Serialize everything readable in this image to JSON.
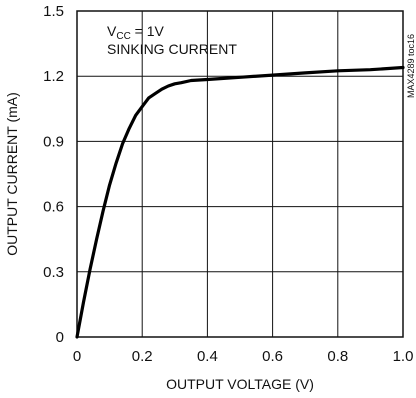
{
  "chart_data": {
    "type": "line",
    "xlabel": "OUTPUT VOLTAGE (V)",
    "ylabel": "OUTPUT CURRENT (mA)",
    "xlim": [
      0,
      1.0
    ],
    "ylim": [
      0,
      1.5
    ],
    "x_ticks": [
      "0",
      "0.2",
      "0.4",
      "0.6",
      "0.8",
      "1.0"
    ],
    "y_ticks": [
      "0",
      "0.3",
      "0.6",
      "0.9",
      "1.2",
      "1.5"
    ],
    "grid": true,
    "annotation": {
      "line1_main": "V",
      "line1_sub": "CC",
      "line1_rest": " = 1V",
      "line2": "SINKING CURRENT"
    },
    "side_note": "MAX4289 toc16",
    "series": [
      {
        "x": [
          0,
          0.02,
          0.04,
          0.06,
          0.08,
          0.1,
          0.12,
          0.14,
          0.16,
          0.18,
          0.2,
          0.22,
          0.24,
          0.26,
          0.28,
          0.3,
          0.32,
          0.35,
          0.4,
          0.45,
          0.5,
          0.6,
          0.7,
          0.8,
          0.9,
          1.0
        ],
        "y": [
          0,
          0.16,
          0.31,
          0.45,
          0.58,
          0.7,
          0.8,
          0.89,
          0.96,
          1.02,
          1.06,
          1.1,
          1.12,
          1.14,
          1.155,
          1.165,
          1.17,
          1.18,
          1.185,
          1.19,
          1.195,
          1.205,
          1.215,
          1.225,
          1.23,
          1.24
        ]
      }
    ]
  }
}
